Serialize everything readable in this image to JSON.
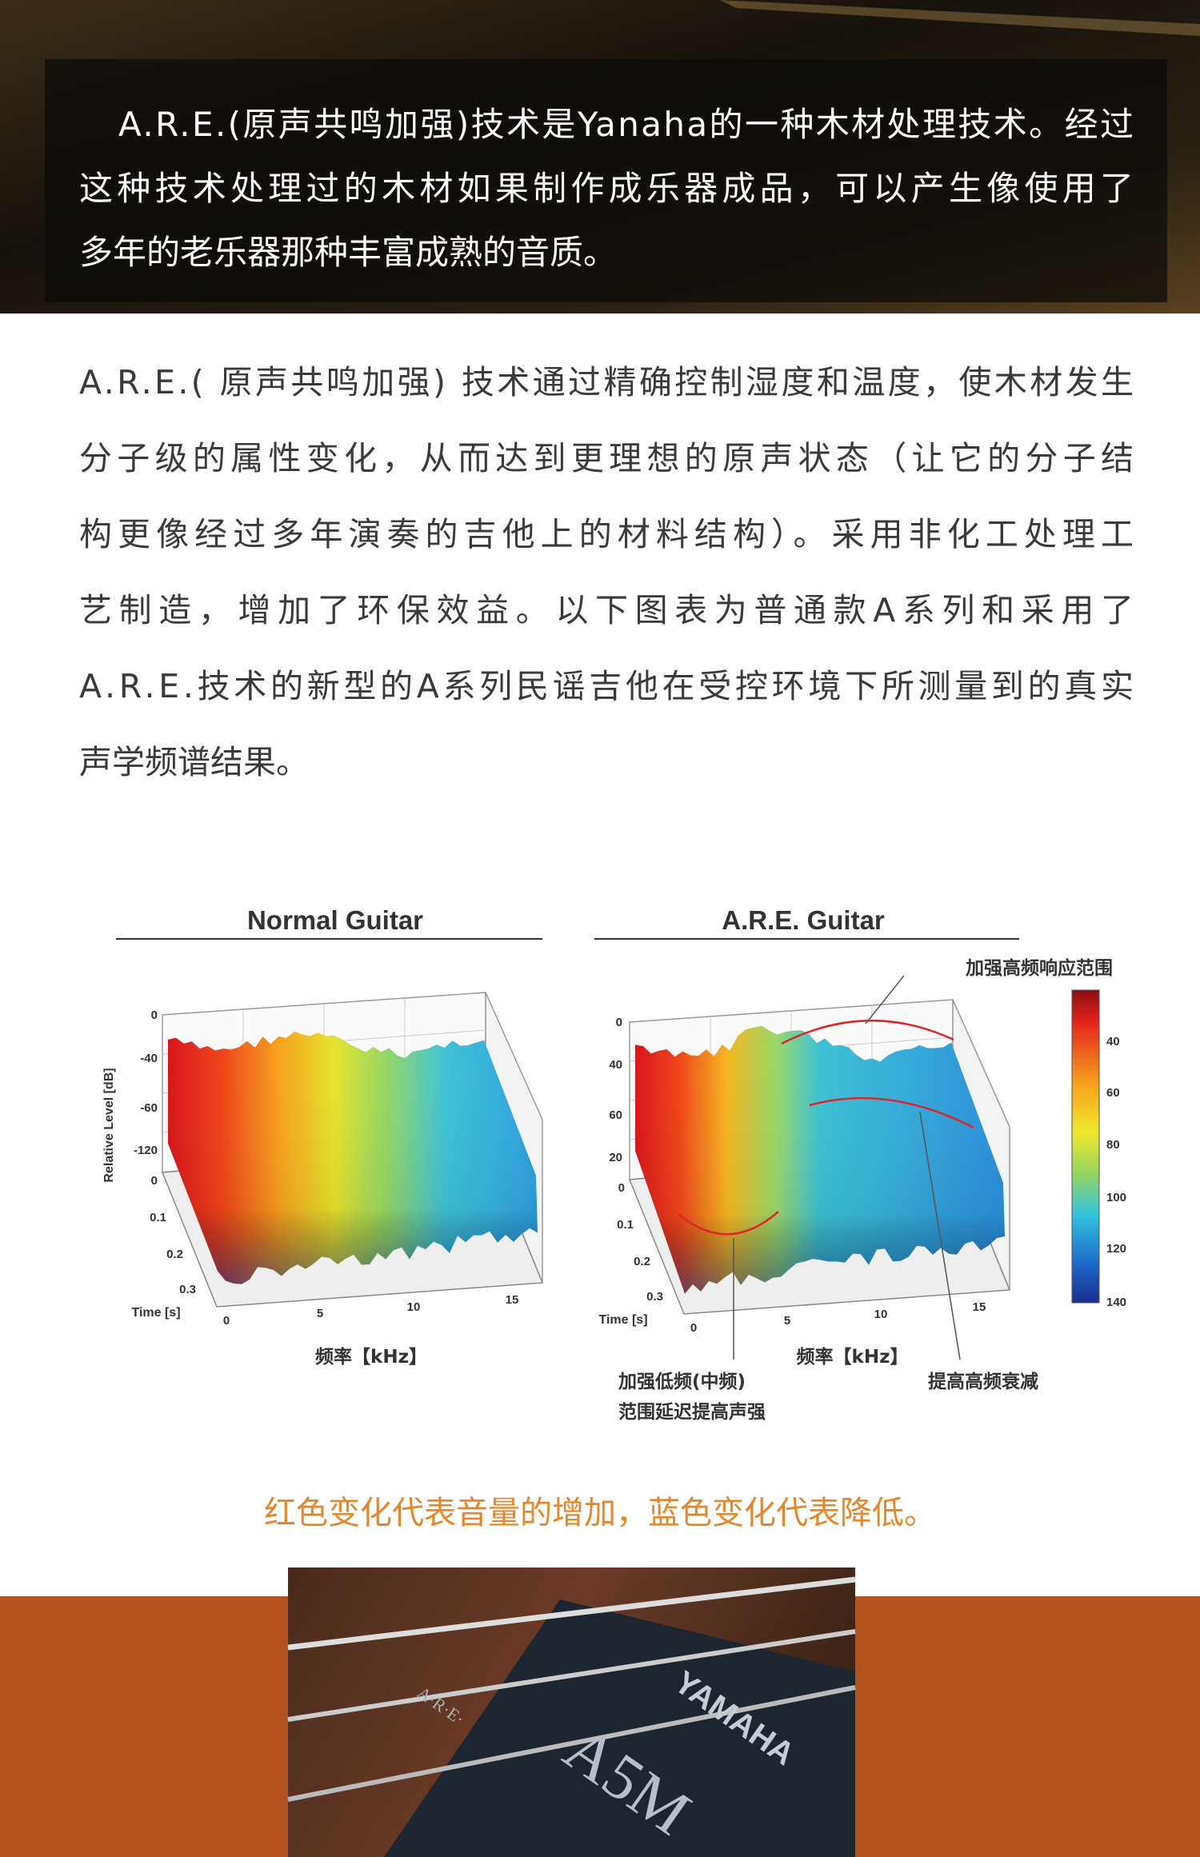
{
  "banner": {
    "lines": [
      "A.R.E.(原声共鸣加强)技术是Yanaha的一种木材处理技术。经过",
      "这种技术处理过的木材如果制作成乐器成品，可以产生像使用了",
      "多年的老乐器那种丰富成熟的音质。"
    ]
  },
  "body": {
    "lines": [
      "A.R.E.( 原声共鸣加强) 技术通过精确控制湿度和温度，使木材发生",
      "分子级的属性变化，从而达到更理想的原声状态（让它的分子结",
      "构更像经过多年演奏的吉他上的材料结构）。采用非化工处理工",
      "艺制造，增加了环保效益。以下图表为普通款A系列和采用了",
      "A.R.E.技术的新型的A系列民谣吉他在受控环境下所测量到的真实",
      "声学频谱结果。"
    ]
  },
  "figure": {
    "plots": [
      {
        "title": "Normal Guitar",
        "y_axis_label": "Relative Level [dB]",
        "level_ticks": [
          "0",
          "-40",
          "-60",
          "-120"
        ],
        "time_label": "Time [s]",
        "time_ticks": [
          "0",
          "0.1",
          "0.2",
          "0.3"
        ],
        "freq_ticks": [
          "0",
          "5",
          "10",
          "15"
        ],
        "freq_label": "频率【kHz】"
      },
      {
        "title": "A.R.E. Guitar",
        "level_ticks": [
          "0",
          "40",
          "60",
          "20"
        ],
        "time_label": "Time [s]",
        "time_ticks": [
          "0",
          "0.1",
          "0.2",
          "0.3"
        ],
        "freq_ticks": [
          "0",
          "5",
          "10",
          "15"
        ],
        "freq_label": "频率【kHz】"
      }
    ],
    "annotations": [
      "加强高频响应范围",
      "加强低频(中频)",
      "范围延迟提高声强",
      "提高高频衰减"
    ],
    "colorbar_ticks": [
      "40",
      "60",
      "80",
      "100",
      "120",
      "140"
    ]
  },
  "caption": "红色变化代表音量的增加，蓝色变化代表降低。",
  "photo": {
    "brand": "YAMAHA",
    "model": "A5M",
    "badge": "A·R·E·"
  }
}
